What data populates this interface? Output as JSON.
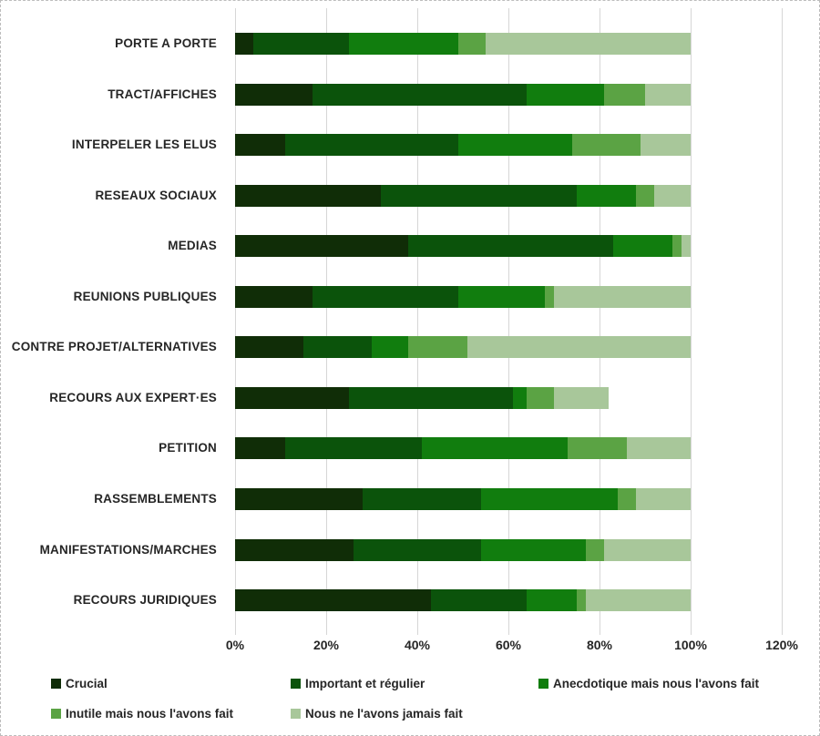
{
  "chart_data": {
    "type": "bar",
    "orientation": "horizontal-stacked",
    "title": "",
    "xlabel": "",
    "ylabel": "",
    "xlim": [
      0,
      120
    ],
    "grid": true,
    "legend_position": "bottom",
    "x_ticks": [
      "0%",
      "20%",
      "40%",
      "60%",
      "80%",
      "100%",
      "120%"
    ],
    "categories": [
      "PORTE A PORTE",
      "TRACT/AFFICHES",
      "INTERPELER LES ELUS",
      "RESEAUX SOCIAUX",
      "MEDIAS",
      "REUNIONS PUBLIQUES",
      "CONTRE PROJET/ALTERNATIVES",
      "RECOURS AUX EXPERT·ES",
      "PETITION",
      "RASSEMBLEMENTS",
      "MANIFESTATIONS/MARCHES",
      "RECOURS JURIDIQUES"
    ],
    "series": [
      {
        "name": "Crucial",
        "color": "#102d07",
        "values": [
          4,
          17,
          11,
          32,
          38,
          17,
          15,
          25,
          11,
          28,
          26,
          43
        ]
      },
      {
        "name": "Important et régulier",
        "color": "#0b530b",
        "values": [
          21,
          47,
          38,
          43,
          45,
          32,
          15,
          36,
          30,
          26,
          28,
          21
        ]
      },
      {
        "name": "Anecdotique mais nous l'avons fait",
        "color": "#117d0e",
        "values": [
          24,
          17,
          25,
          13,
          13,
          19,
          8,
          3,
          32,
          30,
          23,
          11
        ]
      },
      {
        "name": "Inutile mais nous l'avons fait",
        "color": "#5ba344",
        "values": [
          6,
          9,
          15,
          4,
          2,
          2,
          13,
          6,
          13,
          4,
          4,
          2
        ]
      },
      {
        "name": "Nous ne l'avons jamais fait",
        "color": "#a8c79a",
        "values": [
          45,
          10,
          11,
          8,
          2,
          30,
          49,
          12,
          14,
          12,
          19,
          23
        ]
      }
    ],
    "colors": {
      "gridline": "#d6d6d6",
      "text": "#262626",
      "frame_border": "#bdbdbd"
    }
  }
}
